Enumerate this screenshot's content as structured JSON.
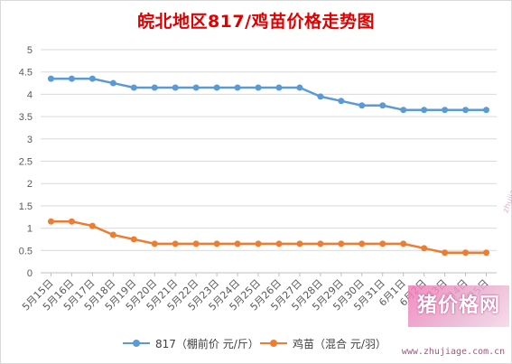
{
  "chart_data": {
    "type": "line",
    "title": "皖北地区817/鸡苗价格走势图",
    "categories": [
      "5月15日",
      "5月16日",
      "5月17日",
      "5月18日",
      "5月19日",
      "5月20日",
      "5月21日",
      "5月22日",
      "5月23日",
      "5月24日",
      "5月25日",
      "5月26日",
      "5月27日",
      "5月28日",
      "5月29日",
      "5月30日",
      "5月31日",
      "6月1日",
      "6月2日",
      "6月3日",
      "6月4日",
      "6月5日"
    ],
    "series": [
      {
        "name": "817（棚前价 元/斤）",
        "color": "#5b9bd5",
        "values": [
          4.35,
          4.35,
          4.35,
          4.25,
          4.15,
          4.15,
          4.15,
          4.15,
          4.15,
          4.15,
          4.15,
          4.15,
          4.15,
          3.95,
          3.85,
          3.75,
          3.75,
          3.65,
          3.65,
          3.65,
          3.65,
          3.65
        ]
      },
      {
        "name": "鸡苗（混合 元/羽）",
        "color": "#ed7d31",
        "values": [
          1.15,
          1.15,
          1.05,
          0.85,
          0.75,
          0.65,
          0.65,
          0.65,
          0.65,
          0.65,
          0.65,
          0.65,
          0.65,
          0.65,
          0.65,
          0.65,
          0.65,
          0.65,
          0.55,
          0.45,
          0.45,
          0.45
        ]
      }
    ],
    "ylim": [
      0,
      5
    ],
    "yticks": [
      0,
      0.5,
      1,
      1.5,
      2,
      2.5,
      3,
      3.5,
      4,
      4.5,
      5
    ],
    "ytick_labels": [
      "0",
      "0.5",
      "1",
      "1.5",
      "2",
      "2.5",
      "3",
      "3.5",
      "4",
      "4.5",
      "5"
    ],
    "xlabel": "",
    "ylabel": "",
    "grid": true,
    "legend_position": "bottom"
  },
  "watermark": {
    "main": "猪价格网",
    "url": "www.zhujiage.com.cn",
    "diagonal": "zhujiage.com.cn"
  }
}
